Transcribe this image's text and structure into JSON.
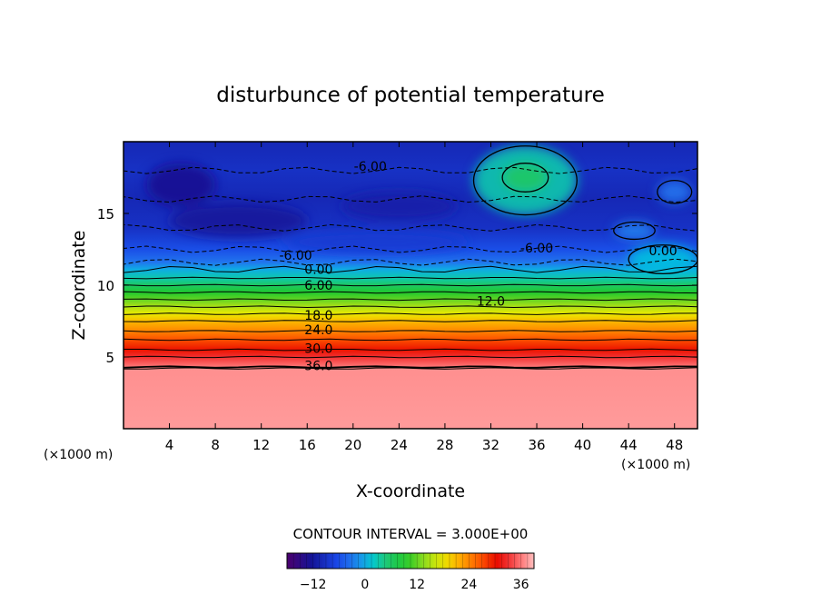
{
  "chart_data": {
    "type": "heatmap",
    "title": "disturbunce of potential temperature",
    "xlabel": "X-coordinate",
    "ylabel": "Z-coordinate",
    "x_unit": "(×1000 m)",
    "z_unit": "(×1000 m)",
    "xlim": [
      0,
      50
    ],
    "ylim": [
      0,
      20
    ],
    "x_ticks": [
      4,
      8,
      12,
      16,
      20,
      24,
      28,
      32,
      36,
      40,
      44,
      48
    ],
    "y_ticks": [
      5,
      10,
      15
    ],
    "contour_interval_text": "CONTOUR INTERVAL = 3.000E+00",
    "colorbar": {
      "min": -18,
      "max": 39,
      "ticks": [
        -12,
        0,
        12,
        24,
        36
      ],
      "tick_labels": [
        "−12",
        "0",
        "12",
        "24",
        "36"
      ]
    },
    "contour_labels": [
      {
        "text": "-6.00",
        "x": 21.5,
        "z": 18.3
      },
      {
        "text": "-6.00",
        "x": 15.0,
        "z": 12.1
      },
      {
        "text": "-6.00",
        "x": 36.0,
        "z": 12.6
      },
      {
        "text": "0.00",
        "x": 17.0,
        "z": 11.1
      },
      {
        "text": "0.00",
        "x": 47.0,
        "z": 12.4
      },
      {
        "text": "6.00",
        "x": 17.0,
        "z": 10.0
      },
      {
        "text": "12.0",
        "x": 32.0,
        "z": 8.9
      },
      {
        "text": "18.0",
        "x": 17.0,
        "z": 7.9
      },
      {
        "text": "24.0",
        "x": 17.0,
        "z": 6.9
      },
      {
        "text": "30.0",
        "x": 17.0,
        "z": 5.6
      },
      {
        "text": "36.0",
        "x": 17.0,
        "z": 4.4
      }
    ],
    "profile": [
      {
        "z": 0.0,
        "value": 37.5
      },
      {
        "z": 4.2,
        "value": 37.0
      },
      {
        "z": 4.3,
        "value": 36.0
      },
      {
        "z": 5.0,
        "value": 33.0
      },
      {
        "z": 5.5,
        "value": 30.0
      },
      {
        "z": 6.2,
        "value": 27.0
      },
      {
        "z": 6.8,
        "value": 24.0
      },
      {
        "z": 7.5,
        "value": 21.0
      },
      {
        "z": 8.0,
        "value": 18.0
      },
      {
        "z": 8.5,
        "value": 15.0
      },
      {
        "z": 9.0,
        "value": 12.0
      },
      {
        "z": 9.5,
        "value": 9.0
      },
      {
        "z": 10.0,
        "value": 6.0
      },
      {
        "z": 10.5,
        "value": 3.0
      },
      {
        "z": 11.1,
        "value": 0.0
      },
      {
        "z": 11.6,
        "value": -3.0
      },
      {
        "z": 12.5,
        "value": -6.0
      },
      {
        "z": 14.0,
        "value": -9.0
      },
      {
        "z": 16.0,
        "value": -10.0
      },
      {
        "z": 18.0,
        "value": -9.0
      },
      {
        "z": 20.0,
        "value": -10.0
      }
    ],
    "upper_features": [
      {
        "x": 35.0,
        "z": 17.3,
        "rx": 4.5,
        "rz": 2.4,
        "value": 3.0
      },
      {
        "x": 35.0,
        "z": 17.5,
        "rx": 2.0,
        "rz": 1.0,
        "value": 6.0
      },
      {
        "x": 47.0,
        "z": 11.8,
        "rx": 3.0,
        "rz": 1.0,
        "value": 1.0
      },
      {
        "x": 44.5,
        "z": 13.8,
        "rx": 1.8,
        "rz": 0.6,
        "value": -2.0
      },
      {
        "x": 48.0,
        "z": 16.5,
        "rx": 1.5,
        "rz": 0.8,
        "value": -3.0
      },
      {
        "x": 5.0,
        "z": 17.0,
        "rx": 3.0,
        "rz": 1.5,
        "value": -13.0
      },
      {
        "x": 10.0,
        "z": 14.5,
        "rx": 6.0,
        "rz": 1.2,
        "value": -12.0
      },
      {
        "x": 24.0,
        "z": 15.5,
        "rx": 5.0,
        "rz": 1.0,
        "value": -11.0
      },
      {
        "x": 22.0,
        "z": 13.0,
        "rx": 8.0,
        "rz": 0.8,
        "value": -8.0
      }
    ]
  }
}
